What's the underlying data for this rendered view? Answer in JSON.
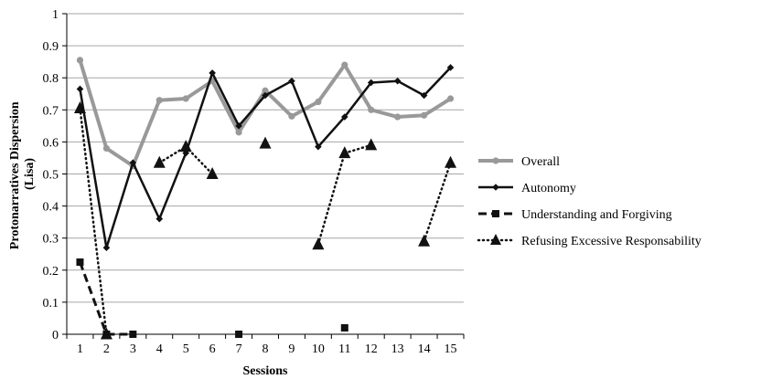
{
  "chart_data": {
    "type": "line",
    "xlabel": "Sessions",
    "ylabel": "Protonarratives Dispersion (Lisa)",
    "ylabel_lines": [
      "Protonarratives Dispersion",
      "(Lisa)"
    ],
    "x": [
      1,
      2,
      3,
      4,
      5,
      6,
      7,
      8,
      9,
      10,
      11,
      12,
      13,
      14,
      15
    ],
    "x_tick_labels": [
      "1",
      "2",
      "3",
      "4",
      "5",
      "6",
      "7",
      "8",
      "9",
      "10",
      "11",
      "12",
      "13",
      "14",
      "15"
    ],
    "ylim": [
      0,
      1
    ],
    "y_ticks": [
      0,
      0.1,
      0.2,
      0.3,
      0.4,
      0.5,
      0.6,
      0.7,
      0.8,
      0.9,
      1
    ],
    "y_tick_labels": [
      "0",
      "0.1",
      "0.2",
      "0.3",
      "0.4",
      "0.5",
      "0.6",
      "0.7",
      "0.8",
      "0.9",
      "1"
    ],
    "grid": "horizontal",
    "legend_position": "right",
    "series": [
      {
        "name": "Overall",
        "color": "#999999",
        "marker": "circle",
        "line_style": "solid-thick",
        "values": [
          0.855,
          0.58,
          0.525,
          0.73,
          0.735,
          0.79,
          0.63,
          0.76,
          0.68,
          0.725,
          0.84,
          0.7,
          0.678,
          0.683,
          0.735
        ]
      },
      {
        "name": "Autonomy",
        "color": "#111111",
        "marker": "diamond",
        "line_style": "solid",
        "values": [
          0.765,
          0.27,
          0.535,
          0.36,
          0.565,
          0.815,
          0.65,
          0.745,
          0.79,
          0.585,
          0.678,
          0.785,
          0.79,
          0.745,
          0.832
        ]
      },
      {
        "name": "Understanding and Forgiving",
        "color": "#111111",
        "marker": "square",
        "line_style": "dashed",
        "values": [
          0.225,
          0,
          0,
          null,
          null,
          null,
          0,
          null,
          null,
          null,
          0.02,
          null,
          null,
          null,
          null
        ]
      },
      {
        "name": "Refusing Excessive Responsability",
        "color": "#111111",
        "marker": "triangle",
        "line_style": "dotted",
        "values": [
          0.705,
          0,
          null,
          0.535,
          0.585,
          0.5,
          null,
          0.595,
          null,
          0.28,
          0.565,
          0.59,
          null,
          0.29,
          0.535
        ]
      }
    ]
  }
}
